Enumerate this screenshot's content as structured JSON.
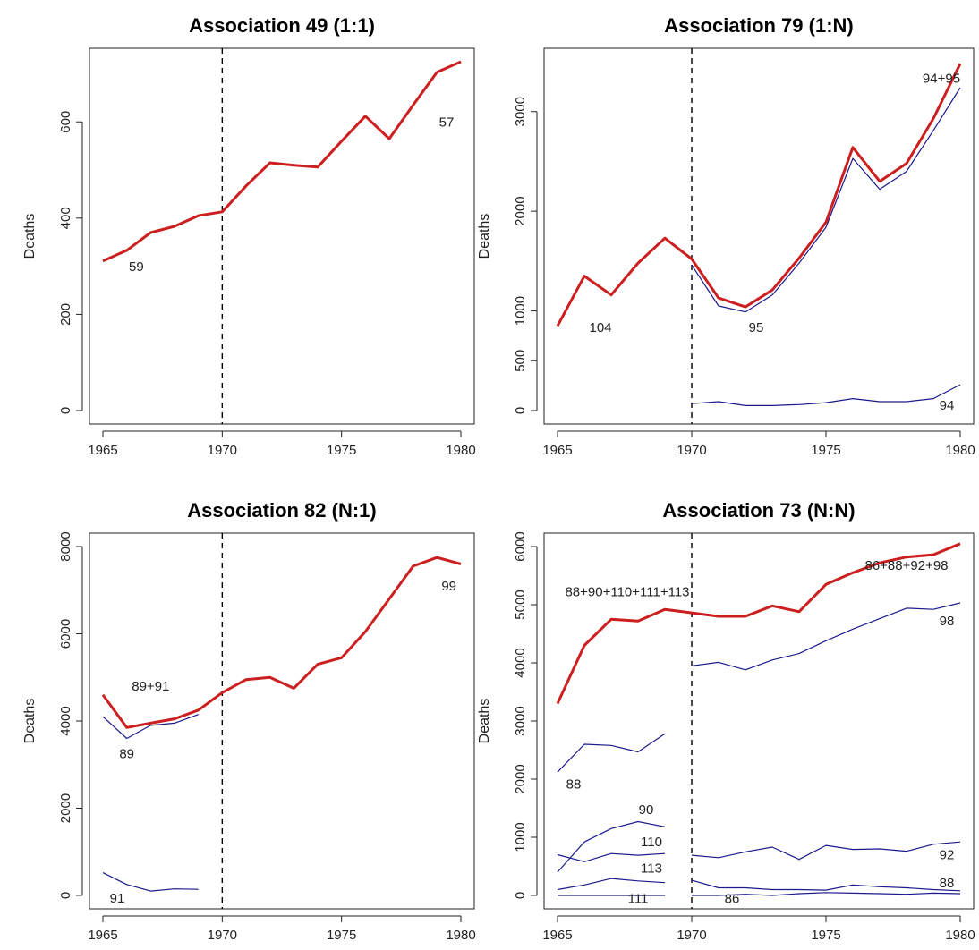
{
  "figure": {
    "background": "#ffffff",
    "total_color": "#cc1f1f",
    "component_color": "#1a1a8c",
    "axis_color": "#222222",
    "vline_color": "#000000"
  },
  "chart_data": [
    {
      "type": "line",
      "title": "Association 49 (1:1)",
      "xlabel": "",
      "ylabel": "Deaths",
      "xlim": [
        1965,
        1980
      ],
      "ylim": [
        0,
        725
      ],
      "xticks": [
        1965,
        1970,
        1975,
        1980
      ],
      "yticks": [
        0,
        200,
        400,
        600
      ],
      "grid": false,
      "vline_x": 1970,
      "series": [
        {
          "role": "total",
          "x": [
            1965,
            1966,
            1967,
            1968,
            1969,
            1970,
            1971,
            1972,
            1973,
            1974,
            1975,
            1976,
            1977,
            1978,
            1979,
            1980
          ],
          "y": [
            311,
            333,
            370,
            383,
            405,
            413,
            467,
            515,
            510,
            506,
            560,
            612,
            565,
            635,
            703,
            725
          ]
        }
      ],
      "labels": [
        {
          "text": "59",
          "x": 1966.4,
          "y": 290
        },
        {
          "text": "57",
          "x": 1979.4,
          "y": 590
        }
      ]
    },
    {
      "type": "line",
      "title": "Association 79 (1:N)",
      "xlabel": "",
      "ylabel": "Deaths",
      "xlim": [
        1965,
        1980
      ],
      "ylim": [
        0,
        3500
      ],
      "xticks": [
        1965,
        1970,
        1975,
        1980
      ],
      "yticks": [
        0,
        500,
        1000,
        2000,
        3000
      ],
      "grid": false,
      "vline_x": 1970,
      "series": [
        {
          "role": "total",
          "x": [
            1965,
            1966,
            1967,
            1968,
            1969,
            1970,
            1971,
            1972,
            1973,
            1974,
            1975,
            1976,
            1977,
            1978,
            1979,
            1980
          ],
          "y": [
            850,
            1350,
            1160,
            1480,
            1730,
            1520,
            1130,
            1040,
            1210,
            1530,
            1890,
            2640,
            2300,
            2480,
            2930,
            3480
          ]
        },
        {
          "role": "component",
          "x": [
            1970,
            1971,
            1972,
            1973,
            1974,
            1975,
            1976,
            1977,
            1978,
            1979,
            1980
          ],
          "y": [
            1460,
            1050,
            990,
            1160,
            1480,
            1840,
            2530,
            2220,
            2400,
            2810,
            3240
          ]
        },
        {
          "role": "component",
          "x": [
            1970,
            1971,
            1972,
            1973,
            1974,
            1975,
            1976,
            1977,
            1978,
            1979,
            1980
          ],
          "y": [
            70,
            90,
            50,
            50,
            60,
            80,
            120,
            90,
            90,
            120,
            260
          ]
        }
      ],
      "labels": [
        {
          "text": "104",
          "x": 1966.6,
          "y": 790
        },
        {
          "text": "95",
          "x": 1972.4,
          "y": 790
        },
        {
          "text": "94+95",
          "x": 1979.3,
          "y": 3290
        },
        {
          "text": "94",
          "x": 1979.5,
          "y": 10
        }
      ]
    },
    {
      "type": "line",
      "title": "Association 82 (N:1)",
      "xlabel": "",
      "ylabel": "Deaths",
      "xlim": [
        1965,
        1980
      ],
      "ylim": [
        0,
        8000
      ],
      "xticks": [
        1965,
        1970,
        1975,
        1980
      ],
      "yticks": [
        0,
        2000,
        4000,
        6000,
        8000
      ],
      "grid": false,
      "vline_x": 1970,
      "series": [
        {
          "role": "total",
          "x": [
            1965,
            1966,
            1967,
            1968,
            1969,
            1970,
            1971,
            1972,
            1973,
            1974,
            1975,
            1976,
            1977,
            1978,
            1979,
            1980
          ],
          "y": [
            4600,
            3850,
            3950,
            4050,
            4250,
            4650,
            4950,
            5000,
            4750,
            5300,
            5450,
            6050,
            6800,
            7550,
            7750,
            7600
          ]
        },
        {
          "role": "component",
          "x": [
            1965,
            1966,
            1967,
            1968,
            1969
          ],
          "y": [
            4100,
            3600,
            3900,
            3950,
            4150
          ]
        },
        {
          "role": "component",
          "x": [
            1965,
            1966,
            1967,
            1968,
            1969
          ],
          "y": [
            520,
            250,
            100,
            150,
            140
          ]
        }
      ],
      "labels": [
        {
          "text": "89+91",
          "x": 1967.0,
          "y": 4700
        },
        {
          "text": "89",
          "x": 1966.0,
          "y": 3150
        },
        {
          "text": "99",
          "x": 1979.5,
          "y": 7000
        },
        {
          "text": "91",
          "x": 1965.6,
          "y": -160
        }
      ]
    },
    {
      "type": "line",
      "title": "Association 73 (N:N)",
      "xlabel": "",
      "ylabel": "Deaths",
      "xlim": [
        1965,
        1980
      ],
      "ylim": [
        0,
        6000
      ],
      "xticks": [
        1965,
        1970,
        1975,
        1980
      ],
      "yticks": [
        0,
        1000,
        2000,
        3000,
        4000,
        5000,
        6000
      ],
      "grid": false,
      "vline_x": 1970,
      "series": [
        {
          "role": "total",
          "x": [
            1965,
            1966,
            1967,
            1968,
            1969,
            1970,
            1971,
            1972,
            1973,
            1974,
            1975,
            1976,
            1977,
            1978,
            1979,
            1980
          ],
          "y": [
            3300,
            4300,
            4750,
            4720,
            4920,
            4860,
            4800,
            4800,
            4980,
            4880,
            5350,
            5550,
            5720,
            5820,
            5860,
            6050
          ]
        },
        {
          "role": "component",
          "x": [
            1965,
            1966,
            1967,
            1968,
            1969
          ],
          "y": [
            2120,
            2600,
            2580,
            2470,
            2780
          ]
        },
        {
          "role": "component",
          "x": [
            1965,
            1966,
            1967,
            1968,
            1969
          ],
          "y": [
            400,
            920,
            1150,
            1270,
            1180
          ]
        },
        {
          "role": "component",
          "x": [
            1965,
            1966,
            1967,
            1968,
            1969
          ],
          "y": [
            700,
            580,
            720,
            690,
            720
          ]
        },
        {
          "role": "component",
          "x": [
            1965,
            1966,
            1967,
            1968,
            1969
          ],
          "y": [
            100,
            180,
            290,
            250,
            220
          ]
        },
        {
          "role": "component",
          "x": [
            1965,
            1966,
            1967,
            1968,
            1969
          ],
          "y": [
            0,
            0,
            0,
            0,
            0
          ]
        },
        {
          "role": "component",
          "x": [
            1970,
            1971,
            1972,
            1973,
            1974,
            1975,
            1976,
            1977,
            1978,
            1979,
            1980
          ],
          "y": [
            3950,
            4010,
            3880,
            4050,
            4160,
            4380,
            4580,
            4760,
            4940,
            4920,
            5030
          ]
        },
        {
          "role": "component",
          "x": [
            1970,
            1971,
            1972,
            1973,
            1974,
            1975,
            1976,
            1977,
            1978,
            1979,
            1980
          ],
          "y": [
            690,
            650,
            750,
            830,
            620,
            860,
            790,
            800,
            760,
            880,
            920
          ]
        },
        {
          "role": "component",
          "x": [
            1970,
            1971,
            1972,
            1973,
            1974,
            1975,
            1976,
            1977,
            1978,
            1979,
            1980
          ],
          "y": [
            260,
            130,
            130,
            100,
            100,
            90,
            180,
            150,
            130,
            100,
            80
          ]
        },
        {
          "role": "component",
          "x": [
            1970,
            1971,
            1972,
            1973,
            1974,
            1975,
            1976,
            1977,
            1978,
            1979,
            1980
          ],
          "y": [
            0,
            0,
            20,
            0,
            30,
            50,
            40,
            30,
            20,
            40,
            30
          ]
        }
      ],
      "labels": [
        {
          "text": "88+90+110+111+113",
          "x": 1967.6,
          "y": 5150
        },
        {
          "text": "86+88+92+98",
          "x": 1978.0,
          "y": 5600
        },
        {
          "text": "98",
          "x": 1979.5,
          "y": 4650
        },
        {
          "text": "88",
          "x": 1965.6,
          "y": 1840
        },
        {
          "text": "90",
          "x": 1968.3,
          "y": 1400
        },
        {
          "text": "110",
          "x": 1968.5,
          "y": 850
        },
        {
          "text": "113",
          "x": 1968.5,
          "y": 390
        },
        {
          "text": "111",
          "x": 1968.0,
          "y": -130
        },
        {
          "text": "86",
          "x": 1971.5,
          "y": -130
        },
        {
          "text": "92",
          "x": 1979.5,
          "y": 620
        },
        {
          "text": "88",
          "x": 1979.5,
          "y": 140
        }
      ]
    }
  ]
}
